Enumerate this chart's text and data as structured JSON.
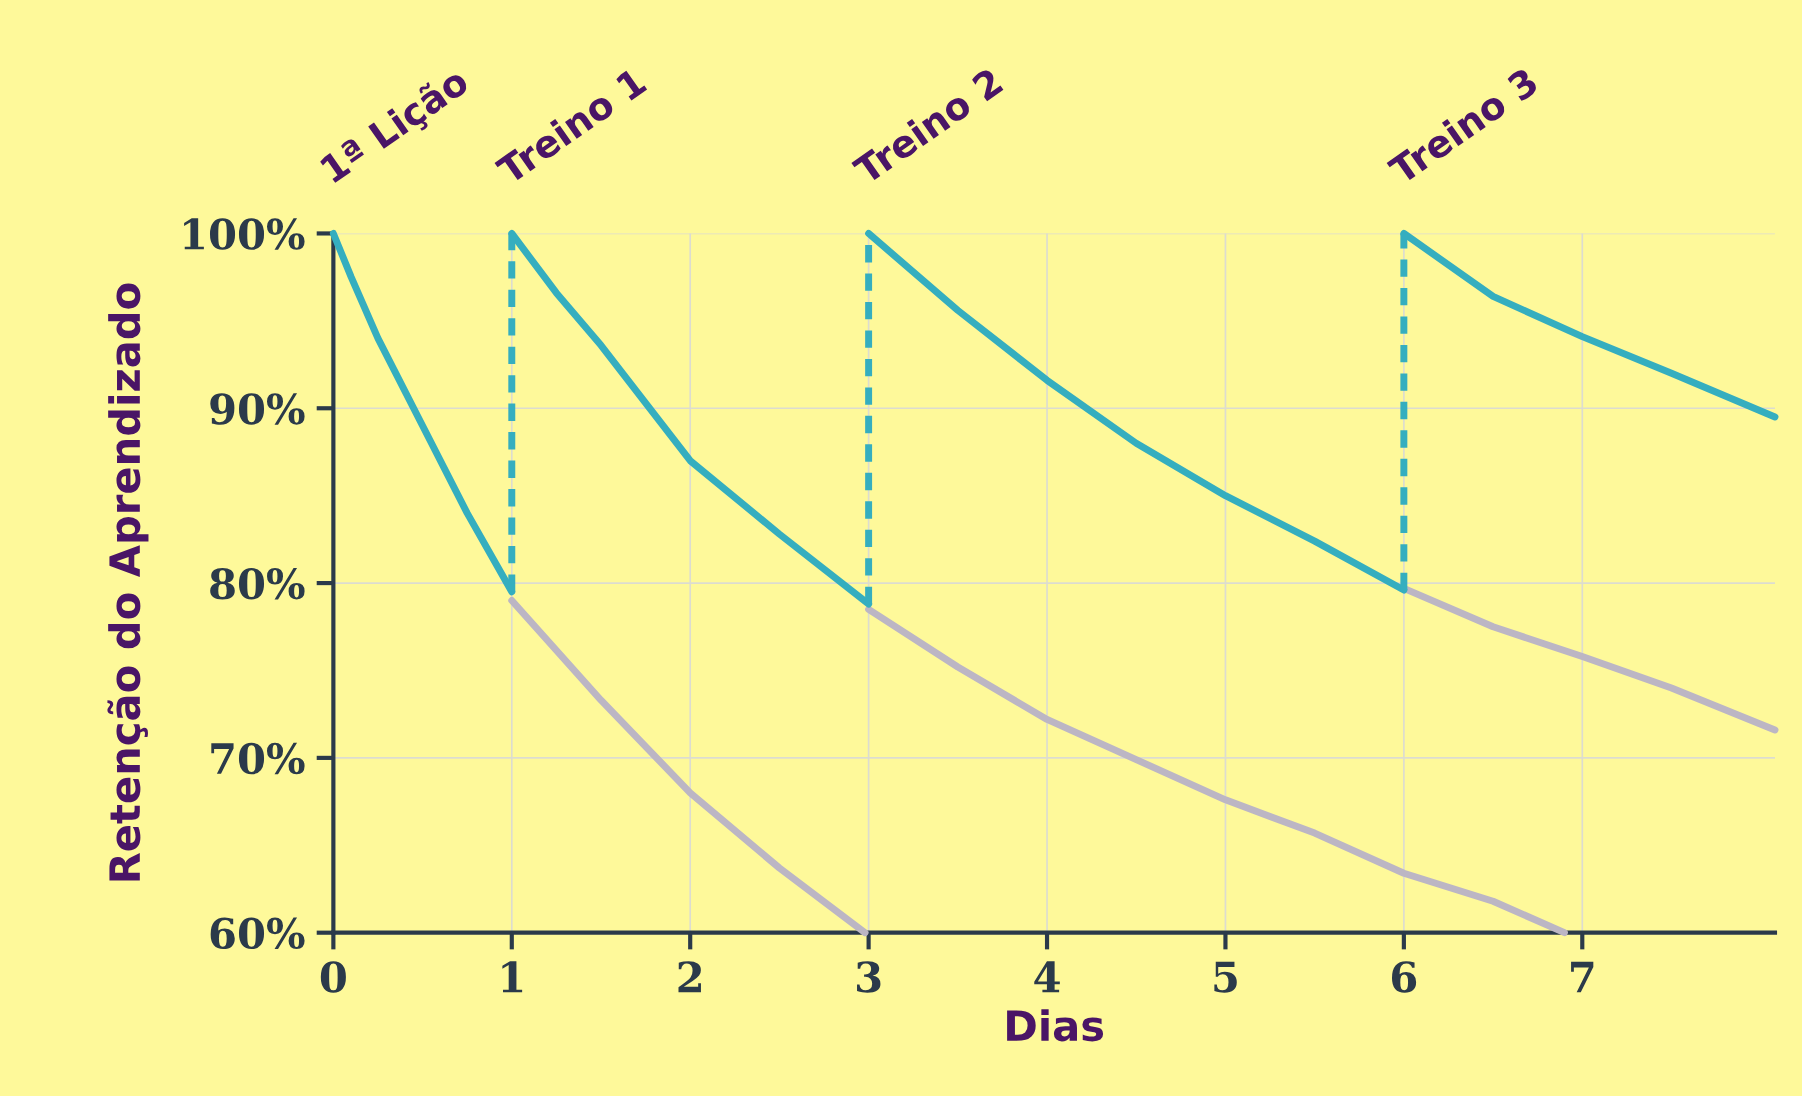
{
  "chart_data": {
    "type": "line",
    "xlabel": "Dias",
    "ylabel": "Retenção do Aprendizado",
    "xlim": [
      0,
      8.08
    ],
    "ylim": [
      60,
      100
    ],
    "xticks": [
      0,
      1,
      2,
      3,
      4,
      5,
      6,
      7
    ],
    "yticks": [
      {
        "value": 60,
        "label": "60%"
      },
      {
        "value": 70,
        "label": "70%"
      },
      {
        "value": 80,
        "label": "80%"
      },
      {
        "value": 90,
        "label": "90%"
      },
      {
        "value": 100,
        "label": "100%"
      }
    ],
    "grid": true,
    "marker": "none",
    "line_style": "solid",
    "series": [
      {
        "color": "#bcb6c4",
        "x": [
          1,
          1.5,
          2,
          2.5,
          2.98
        ],
        "values": [
          79,
          73.3,
          68,
          63.7,
          60
        ]
      },
      {
        "color": "#bcb6c4",
        "x": [
          3,
          3.5,
          4,
          4.5,
          5,
          5.5,
          6,
          6.5,
          6.9
        ],
        "values": [
          78.5,
          75.2,
          72.2,
          69.9,
          67.6,
          65.7,
          63.4,
          61.8,
          60
        ]
      },
      {
        "color": "#bcb6c4",
        "x": [
          6,
          6.5,
          7,
          7.5,
          8.08
        ],
        "values": [
          79.7,
          77.5,
          75.8,
          74,
          71.6
        ]
      },
      {
        "color": "#35aebf",
        "x": [
          0,
          0.1,
          0.25,
          0.5,
          0.75,
          1
        ],
        "values": [
          100,
          97.5,
          94,
          89,
          84,
          79.5
        ]
      },
      {
        "color": "#35aebf",
        "x": [
          1,
          1.25,
          1.5,
          2,
          2.5,
          3
        ],
        "values": [
          100,
          96.6,
          93.6,
          87,
          82.8,
          78.8
        ]
      },
      {
        "color": "#35aebf",
        "x": [
          3,
          3.5,
          4,
          4.5,
          5,
          5.5,
          6
        ],
        "values": [
          100,
          95.6,
          91.6,
          88,
          85,
          82.4,
          79.6
        ]
      },
      {
        "color": "#35aebf",
        "x": [
          6,
          6.5,
          7,
          7.5,
          8.08
        ],
        "values": [
          100,
          96.4,
          94.1,
          92,
          89.5
        ]
      },
      {
        "color": "#35aebf",
        "line_style": "dashed",
        "x": [
          1,
          1
        ],
        "values": [
          79.5,
          100
        ]
      },
      {
        "color": "#35aebf",
        "line_style": "dashed",
        "x": [
          3,
          3
        ],
        "values": [
          78.8,
          100
        ]
      },
      {
        "color": "#35aebf",
        "line_style": "dashed",
        "x": [
          6,
          6
        ],
        "values": [
          79.6,
          100
        ]
      }
    ],
    "annotations": [
      {
        "text": "1ª Lição",
        "x": 0,
        "y": 100
      },
      {
        "text": "Treino 1",
        "x": 1,
        "y": 100
      },
      {
        "text": "Treino 2",
        "x": 3,
        "y": 100
      },
      {
        "text": "Treino 3",
        "x": 6,
        "y": 100
      }
    ]
  }
}
